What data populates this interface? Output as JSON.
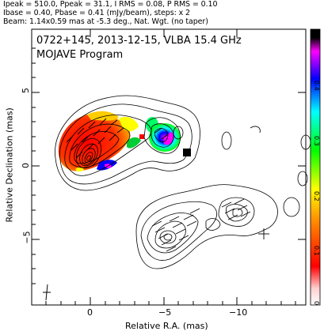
{
  "header": {
    "line1": "Ipeak = 510.0, Ppeak = 31.1, I RMS = 0.08, P RMS = 0.10",
    "line2": "Ibase = 0.40, Pbase = 0.41 (mJy/beam), steps: x 2",
    "line3": "Beam: 1.14x0.59 mas at -5.3 deg., Nat. Wgt. (no taper)"
  },
  "plot": {
    "source_line": "0722+145, 2013-12-15, VLBA 15.4 GHz",
    "program_line": "MOJAVE Program",
    "xlabel": "Relative R.A. (mas)",
    "ylabel": "Relative Declination (mas)",
    "x_ticks": [
      "0",
      "−5",
      "−10"
    ],
    "y_ticks": [
      "5",
      "0",
      "−5"
    ]
  },
  "colorbar": {
    "ticks": [
      "0",
      "0.1",
      "0.2",
      "0.3",
      "0.4",
      "0.5"
    ],
    "range": [
      0,
      0.5
    ],
    "colors": [
      "#ffffff",
      "#ff0000",
      "#ffa500",
      "#ffff00",
      "#00ff00",
      "#00ffff",
      "#0000ff",
      "#ff00ff",
      "#000000"
    ]
  }
}
